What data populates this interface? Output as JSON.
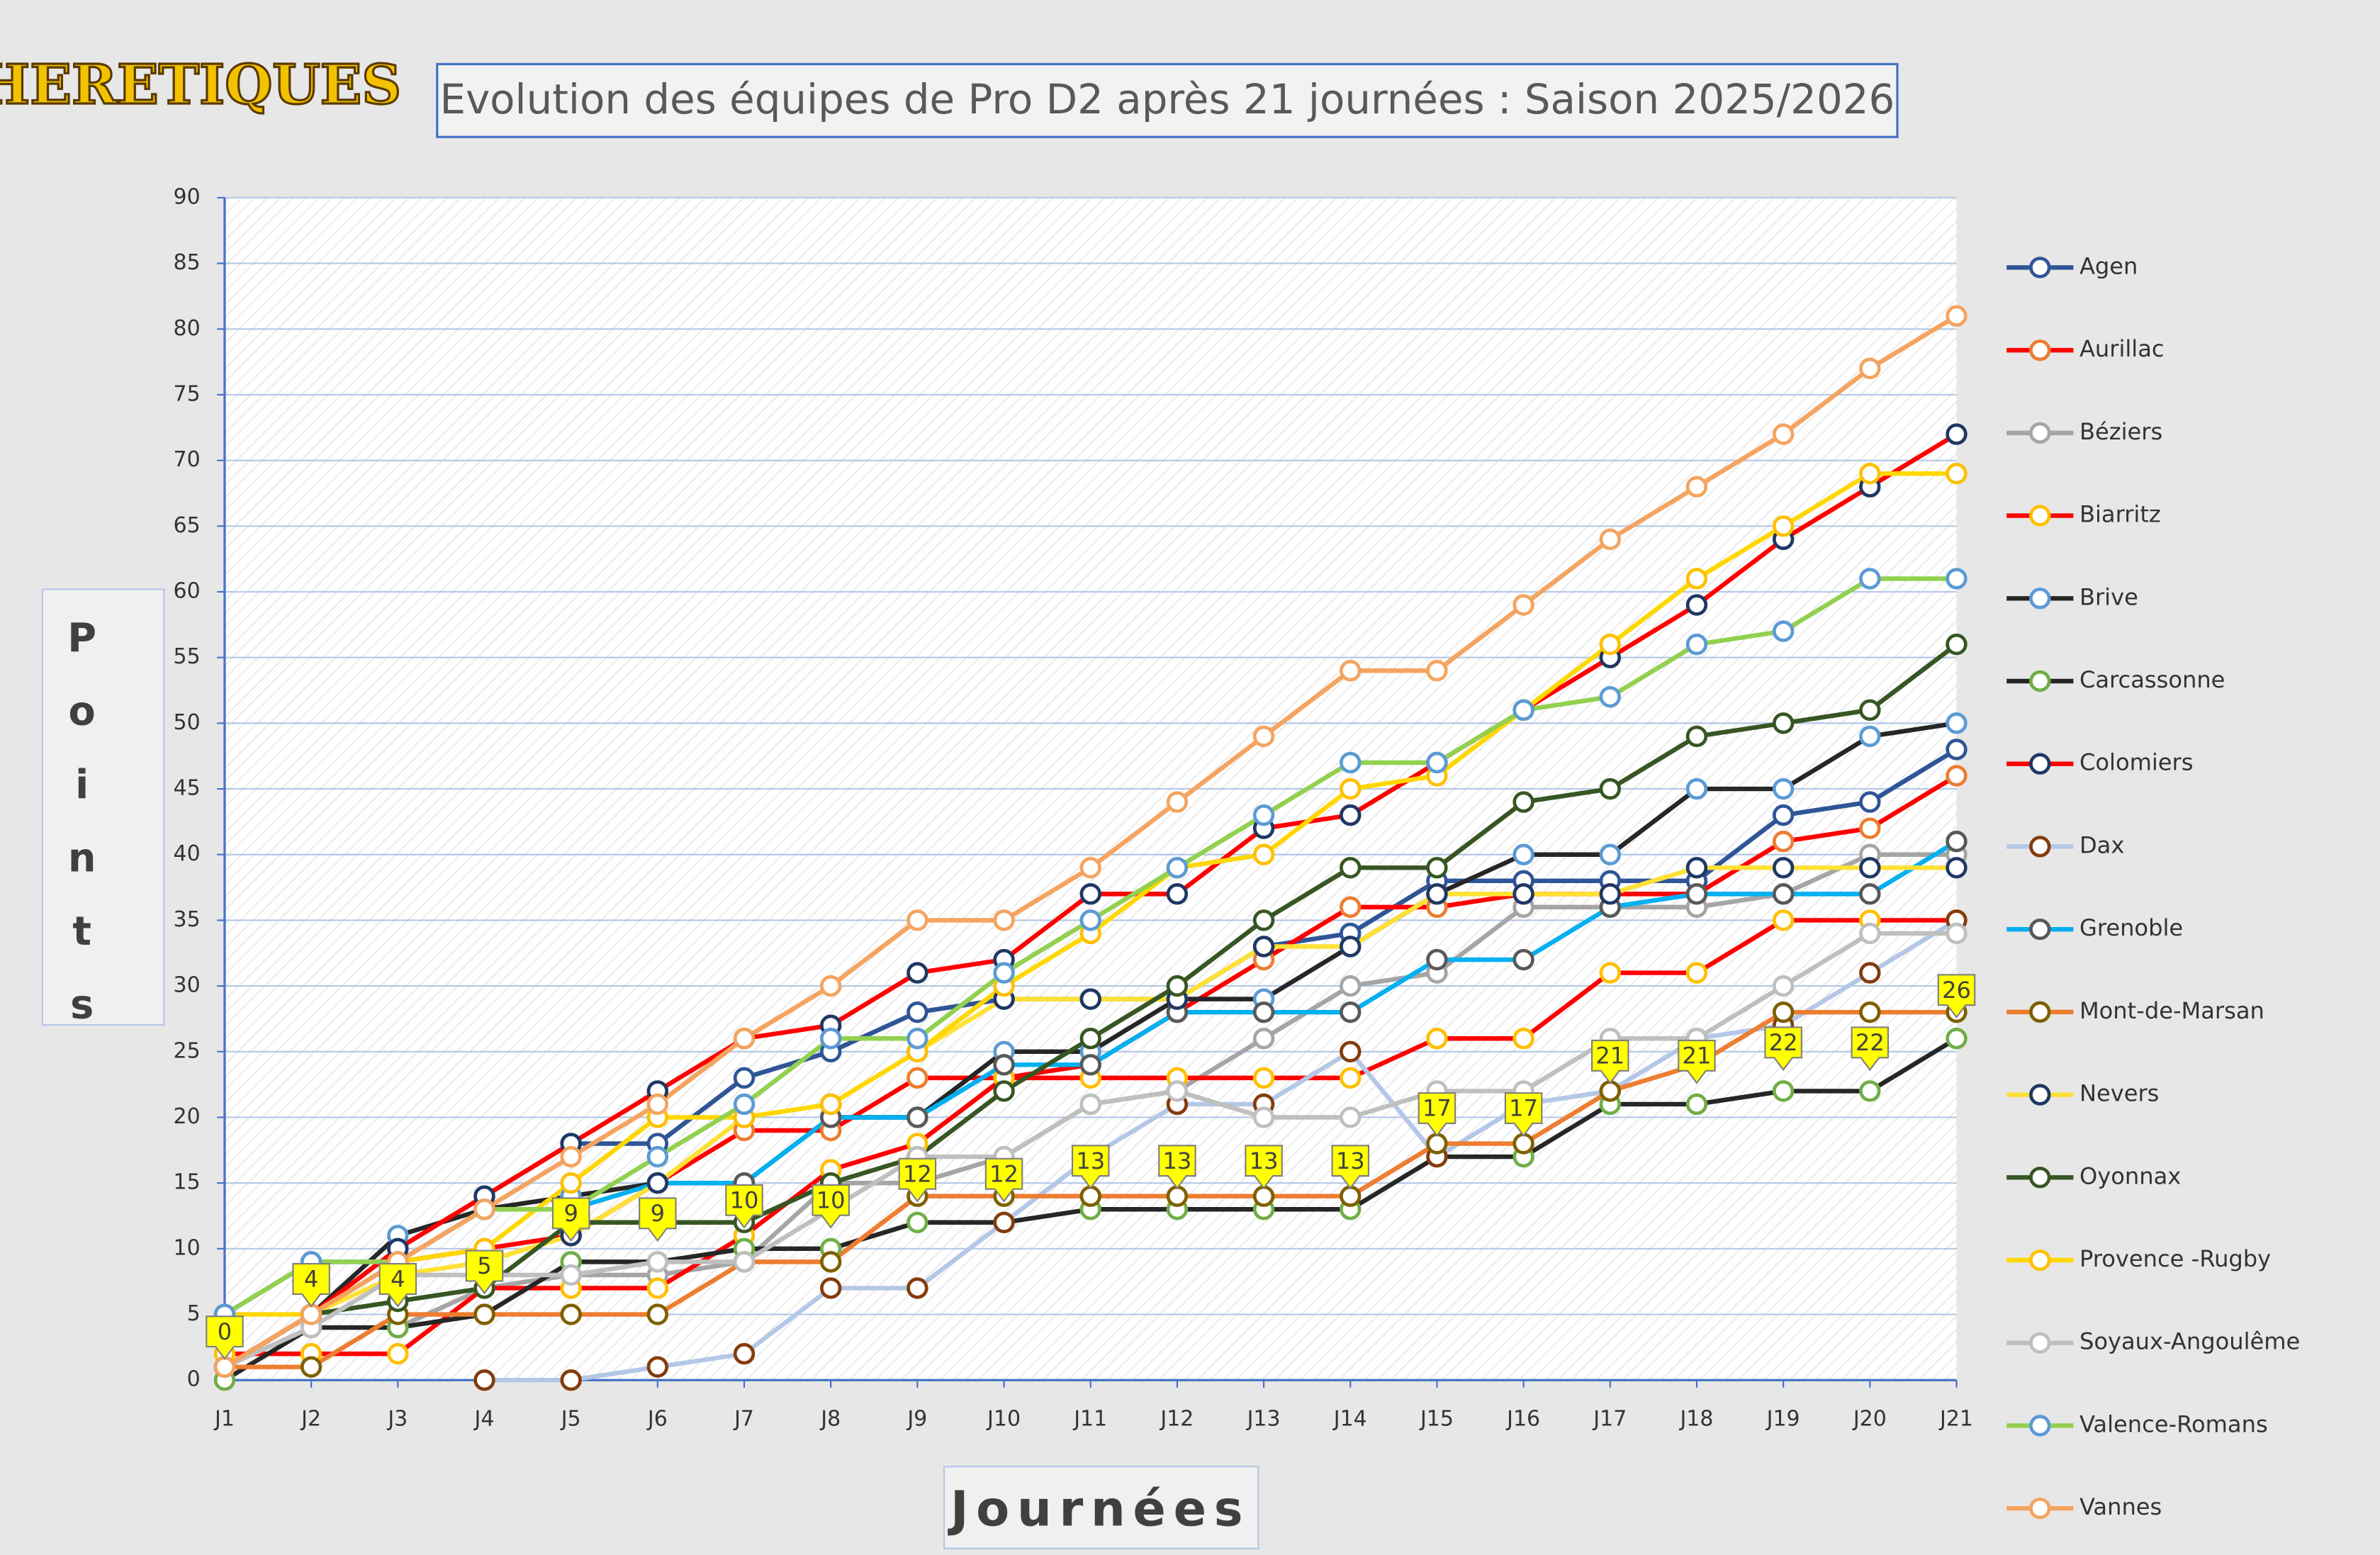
{
  "logo": "HERETIQUES",
  "chart_data": {
    "type": "line",
    "title": "Evolution des équipes de Pro D2 après 21 journées : Saison 2025/2026",
    "y_label": "Points",
    "x_label": "Journées",
    "categories": [
      "J1",
      "J2",
      "J3",
      "J4",
      "J5",
      "J6",
      "J7",
      "J8",
      "J9",
      "J10",
      "J11",
      "J12",
      "J13",
      "J14",
      "J15",
      "J16",
      "J17",
      "J18",
      "J19",
      "J20",
      "J21"
    ],
    "ylim": [
      0,
      90
    ],
    "yticks": [
      0,
      5,
      10,
      15,
      20,
      25,
      30,
      35,
      40,
      45,
      50,
      55,
      60,
      65,
      70,
      75,
      80,
      85,
      90
    ],
    "grid": true,
    "legend": "right",
    "series": [
      {
        "name": "Agen",
        "color": "#2f5597",
        "marker_color": "#2f5597",
        "values": [
          1,
          5,
          10,
          14,
          18,
          18,
          23,
          25,
          28,
          29,
          29,
          29,
          33,
          34,
          38,
          38,
          38,
          38,
          43,
          44,
          48
        ]
      },
      {
        "name": "Aurillac",
        "color": "#ff0000",
        "marker_color": "#ed7d31",
        "values": [
          1,
          5,
          9,
          10,
          11,
          15,
          19,
          19,
          23,
          23,
          24,
          28,
          32,
          36,
          36,
          37,
          37,
          37,
          41,
          42,
          46
        ]
      },
      {
        "name": "Béziers",
        "color": "#a5a5a5",
        "marker_color": "#a5a5a5",
        "values": [
          1,
          4,
          4,
          7,
          8,
          8,
          9,
          15,
          15,
          17,
          21,
          22,
          26,
          30,
          31,
          36,
          36,
          36,
          37,
          40,
          40
        ]
      },
      {
        "name": "Biarritz",
        "color": "#ff0000",
        "marker_color": "#ffc000",
        "values": [
          2,
          2,
          2,
          7,
          7,
          7,
          11,
          16,
          18,
          23,
          23,
          23,
          23,
          23,
          26,
          26,
          31,
          31,
          35,
          35,
          35
        ]
      },
      {
        "name": "Brive",
        "color": "#262626",
        "marker_color": "#5b9bd5",
        "values": [
          1,
          5,
          11,
          13,
          14,
          15,
          15,
          20,
          20,
          25,
          25,
          29,
          29,
          33,
          37,
          40,
          40,
          45,
          45,
          49,
          50
        ]
      },
      {
        "name": "Carcassonne",
        "color": "#262626",
        "marker_color": "#70ad47",
        "label_color": "#ffff00",
        "values": [
          0,
          4,
          4,
          5,
          9,
          9,
          10,
          10,
          12,
          12,
          13,
          13,
          13,
          13,
          17,
          17,
          21,
          21,
          22,
          22,
          26
        ]
      },
      {
        "name": "Colomiers",
        "color": "#ff0000",
        "marker_color": "#1f3864",
        "values": [
          1,
          5,
          10,
          14,
          18,
          22,
          26,
          27,
          31,
          32,
          37,
          37,
          42,
          43,
          47,
          51,
          55,
          59,
          64,
          68,
          72
        ]
      },
      {
        "name": "Dax",
        "color": "#b4c7e7",
        "marker_color": "#843c0c",
        "values": [
          null,
          null,
          null,
          0,
          0,
          1,
          2,
          7,
          7,
          12,
          17,
          21,
          21,
          25,
          17,
          21,
          22,
          26,
          27,
          31,
          35
        ]
      },
      {
        "name": "Grenoble",
        "color": "#00b0f0",
        "marker_color": "#595959",
        "values": [
          5,
          9,
          9,
          13,
          13,
          15,
          15,
          20,
          20,
          24,
          24,
          28,
          28,
          28,
          32,
          32,
          36,
          37,
          37,
          37,
          41
        ]
      },
      {
        "name": "Mont-de-Marsan",
        "color": "#ed7d31",
        "marker_color": "#7f6000",
        "values": [
          1,
          1,
          5,
          5,
          5,
          5,
          9,
          9,
          14,
          14,
          14,
          14,
          14,
          14,
          18,
          18,
          22,
          24,
          28,
          28,
          28
        ]
      },
      {
        "name": "Nevers",
        "color": "#ffe135",
        "marker_color": "#203864",
        "values": [
          1,
          5,
          8,
          9,
          11,
          15,
          20,
          21,
          25,
          29,
          29,
          29,
          33,
          33,
          37,
          37,
          37,
          39,
          39,
          39,
          39
        ]
      },
      {
        "name": "Oyonnax",
        "color": "#375623",
        "marker_color": "#375623",
        "values": [
          1,
          5,
          6,
          7,
          12,
          12,
          12,
          15,
          17,
          22,
          26,
          30,
          35,
          39,
          39,
          44,
          45,
          49,
          50,
          51,
          56
        ]
      },
      {
        "name": "Provence -Rugby",
        "color": "#ffd700",
        "marker_color": "#ffc000",
        "values": [
          5,
          5,
          9,
          10,
          15,
          20,
          20,
          21,
          25,
          30,
          34,
          39,
          40,
          45,
          46,
          51,
          56,
          61,
          65,
          69,
          69
        ]
      },
      {
        "name": "Soyaux-Angoulême",
        "color": "#bfbfbf",
        "marker_color": "#bfbfbf",
        "values": [
          1,
          4,
          8,
          8,
          8,
          9,
          9,
          13,
          17,
          17,
          21,
          22,
          20,
          20,
          22,
          22,
          26,
          26,
          30,
          34,
          34
        ]
      },
      {
        "name": "Valence-Romans",
        "color": "#92d050",
        "marker_color": "#5b9bd5",
        "values": [
          5,
          9,
          9,
          13,
          13,
          17,
          21,
          26,
          26,
          31,
          35,
          39,
          43,
          47,
          47,
          51,
          52,
          56,
          57,
          61,
          61
        ]
      },
      {
        "name": "Vannes",
        "color": "#f4a460",
        "marker_color": "#f4a460",
        "values": [
          1,
          5,
          9,
          13,
          17,
          21,
          26,
          30,
          35,
          35,
          39,
          44,
          49,
          54,
          54,
          59,
          64,
          68,
          72,
          77,
          81
        ]
      }
    ]
  }
}
